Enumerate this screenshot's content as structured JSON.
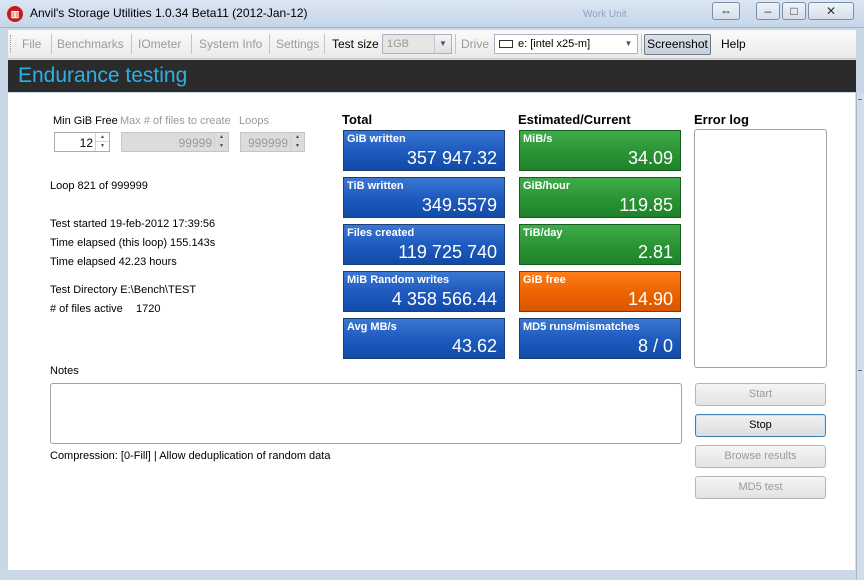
{
  "window": {
    "title": "Anvil's Storage Utilities 1.0.34 Beta11 (2012-Jan-12)",
    "background_text": "Work Unit",
    "icon": "app-icon",
    "controls": [
      "swap-icon",
      "minimize-icon",
      "maximize-icon",
      "close-icon"
    ]
  },
  "toolbar": {
    "file": "File",
    "benchmarks": "Benchmarks",
    "iometer": "IOmeter",
    "system_info": "System Info",
    "settings": "Settings",
    "test_size_label": "Test size",
    "test_size_value": "1GB",
    "drive_label": "Drive",
    "drive_value": "e: [intel x25-m]",
    "screenshot": "Screenshot",
    "help": "Help"
  },
  "header": {
    "title": "Endurance testing"
  },
  "params": {
    "min_gib_free_label": "Min GiB Free",
    "min_gib_free_value": "12",
    "max_files_label": "Max # of files to create",
    "max_files_value": "99999",
    "loops_label": "Loops",
    "loops_value": "999999"
  },
  "status": {
    "loop": "Loop 821 of 999999",
    "test_started": "Test started 19-feb-2012 17:39:56",
    "elapsed_loop": "Time elapsed (this loop) 155.143s",
    "elapsed_total": "Time elapsed 42.23 hours",
    "test_directory": "Test Directory E:\\Bench\\TEST",
    "files_active_label": "# of files active",
    "files_active_value": "1720"
  },
  "total": {
    "heading": "Total",
    "tiles": [
      {
        "label": "GiB written",
        "value": "357 947.32"
      },
      {
        "label": "TiB written",
        "value": "349.5579"
      },
      {
        "label": "Files created",
        "value": "119 725 740"
      },
      {
        "label": "MiB Random writes",
        "value": "4 358 566.44"
      },
      {
        "label": "Avg MB/s",
        "value": "43.62"
      }
    ]
  },
  "estimated": {
    "heading": "Estimated/Current",
    "tiles": [
      {
        "label": "MiB/s",
        "value": "34.09",
        "color": "#2a9335"
      },
      {
        "label": "GiB/hour",
        "value": "119.85",
        "color": "#2a9335"
      },
      {
        "label": "TiB/day",
        "value": "2.81",
        "color": "#2a9335"
      },
      {
        "label": "GiB free",
        "value": "14.90",
        "color": "#ec6300"
      },
      {
        "label": "MD5 runs/mismatches",
        "value": "8 / 0",
        "color": "#1f5bbf"
      }
    ]
  },
  "error_log": {
    "heading": "Error log"
  },
  "notes": {
    "label": "Notes",
    "compression": "Compression: [0-Fill]  |  Allow deduplication of random data"
  },
  "buttons": {
    "start": "Start",
    "stop": "Stop",
    "browse": "Browse results",
    "md5": "MD5 test"
  },
  "colors": {
    "header_bg": "#2b2b2b",
    "header_text": "#2bb1e6",
    "tile_blue": "#1f5bbf",
    "tile_green": "#2a9335",
    "tile_orange": "#ec6300"
  }
}
